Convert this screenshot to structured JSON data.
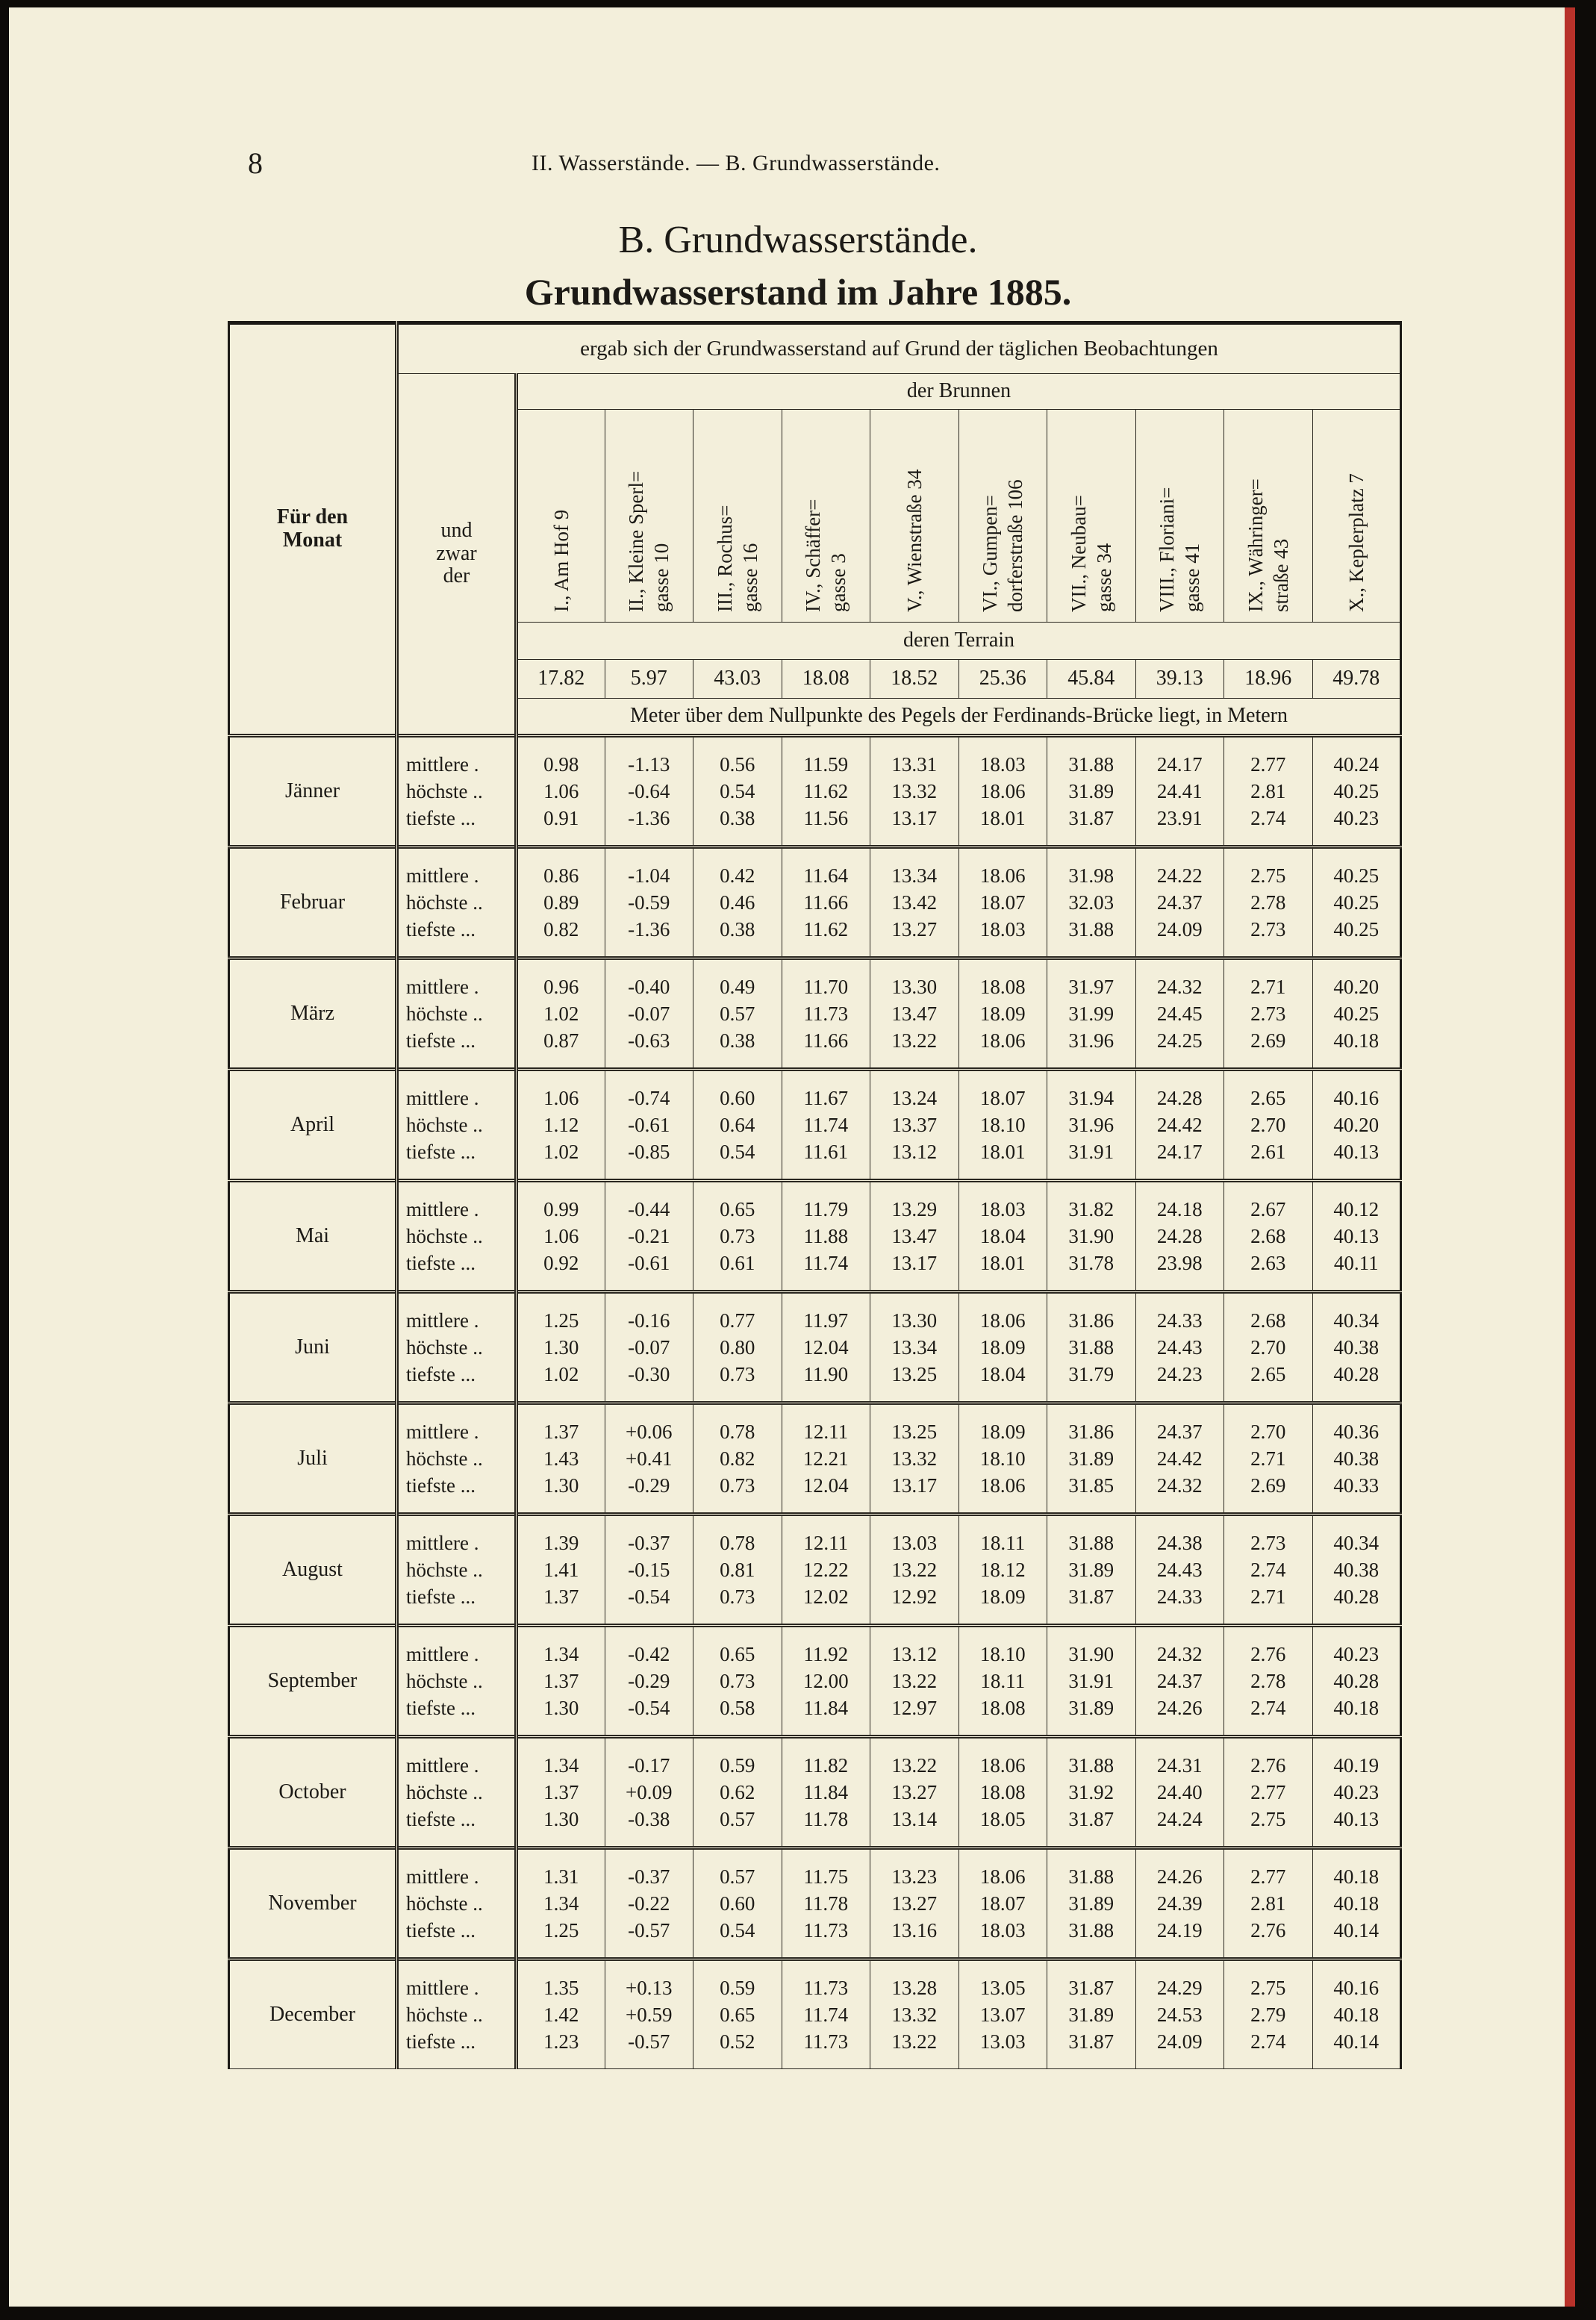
{
  "page_number": "8",
  "running_head": "II. Wasserstände. — B. Grundwasserstände.",
  "title": "B. Grundwasserstände.",
  "subtitle": "Grundwasserstand im Jahre 1885.",
  "table": {
    "col_month": "Für den Monat",
    "col_kind": "und zwar der",
    "header_top": "ergab sich der Grundwasserstand auf Grund der täglichen Beobachtungen",
    "header_wells": "der Brunnen",
    "wells": [
      {
        "line1": "I., Am Hof 9",
        "line2": ""
      },
      {
        "line1": "II., Kleine Sperl=",
        "line2": "gasse 10"
      },
      {
        "line1": "III., Rochus=",
        "line2": "gasse 16"
      },
      {
        "line1": "IV., Schäffer=",
        "line2": "gasse 3"
      },
      {
        "line1": "V., Wienstraße 34",
        "line2": ""
      },
      {
        "line1": "VI., Gumpen=",
        "line2": "dorferstraße 106"
      },
      {
        "line1": "VII., Neubau=",
        "line2": "gasse 34"
      },
      {
        "line1": "VIII., Floriani=",
        "line2": "gasse 41"
      },
      {
        "line1": "IX., Währinger=",
        "line2": "straße 43"
      },
      {
        "line1": "X., Keplerplatz 7",
        "line2": ""
      }
    ],
    "header_terrain": "deren Terrain",
    "terrain": [
      "17.82",
      "5.97",
      "43.03",
      "18.08",
      "18.52",
      "25.36",
      "45.84",
      "39.13",
      "18.96",
      "49.78"
    ],
    "header_meter": "Meter über dem Nullpunkte des Pegels der Ferdinands-Brücke liegt, in Metern",
    "row_labels": [
      "mittlere .",
      "höchste ..",
      "tiefste ..."
    ],
    "months": [
      {
        "name": "Jänner",
        "rows": [
          [
            "0.98",
            "-1.13",
            "0.56",
            "11.59",
            "13.31",
            "18.03",
            "31.88",
            "24.17",
            "2.77",
            "40.24"
          ],
          [
            "1.06",
            "-0.64",
            "0.54",
            "11.62",
            "13.32",
            "18.06",
            "31.89",
            "24.41",
            "2.81",
            "40.25"
          ],
          [
            "0.91",
            "-1.36",
            "0.38",
            "11.56",
            "13.17",
            "18.01",
            "31.87",
            "23.91",
            "2.74",
            "40.23"
          ]
        ]
      },
      {
        "name": "Februar",
        "rows": [
          [
            "0.86",
            "-1.04",
            "0.42",
            "11.64",
            "13.34",
            "18.06",
            "31.98",
            "24.22",
            "2.75",
            "40.25"
          ],
          [
            "0.89",
            "-0.59",
            "0.46",
            "11.66",
            "13.42",
            "18.07",
            "32.03",
            "24.37",
            "2.78",
            "40.25"
          ],
          [
            "0.82",
            "-1.36",
            "0.38",
            "11.62",
            "13.27",
            "18.03",
            "31.88",
            "24.09",
            "2.73",
            "40.25"
          ]
        ]
      },
      {
        "name": "März",
        "rows": [
          [
            "0.96",
            "-0.40",
            "0.49",
            "11.70",
            "13.30",
            "18.08",
            "31.97",
            "24.32",
            "2.71",
            "40.20"
          ],
          [
            "1.02",
            "-0.07",
            "0.57",
            "11.73",
            "13.47",
            "18.09",
            "31.99",
            "24.45",
            "2.73",
            "40.25"
          ],
          [
            "0.87",
            "-0.63",
            "0.38",
            "11.66",
            "13.22",
            "18.06",
            "31.96",
            "24.25",
            "2.69",
            "40.18"
          ]
        ]
      },
      {
        "name": "April",
        "rows": [
          [
            "1.06",
            "-0.74",
            "0.60",
            "11.67",
            "13.24",
            "18.07",
            "31.94",
            "24.28",
            "2.65",
            "40.16"
          ],
          [
            "1.12",
            "-0.61",
            "0.64",
            "11.74",
            "13.37",
            "18.10",
            "31.96",
            "24.42",
            "2.70",
            "40.20"
          ],
          [
            "1.02",
            "-0.85",
            "0.54",
            "11.61",
            "13.12",
            "18.01",
            "31.91",
            "24.17",
            "2.61",
            "40.13"
          ]
        ]
      },
      {
        "name": "Mai",
        "rows": [
          [
            "0.99",
            "-0.44",
            "0.65",
            "11.79",
            "13.29",
            "18.03",
            "31.82",
            "24.18",
            "2.67",
            "40.12"
          ],
          [
            "1.06",
            "-0.21",
            "0.73",
            "11.88",
            "13.47",
            "18.04",
            "31.90",
            "24.28",
            "2.68",
            "40.13"
          ],
          [
            "0.92",
            "-0.61",
            "0.61",
            "11.74",
            "13.17",
            "18.01",
            "31.78",
            "23.98",
            "2.63",
            "40.11"
          ]
        ]
      },
      {
        "name": "Juni",
        "rows": [
          [
            "1.25",
            "-0.16",
            "0.77",
            "11.97",
            "13.30",
            "18.06",
            "31.86",
            "24.33",
            "2.68",
            "40.34"
          ],
          [
            "1.30",
            "-0.07",
            "0.80",
            "12.04",
            "13.34",
            "18.09",
            "31.88",
            "24.43",
            "2.70",
            "40.38"
          ],
          [
            "1.02",
            "-0.30",
            "0.73",
            "11.90",
            "13.25",
            "18.04",
            "31.79",
            "24.23",
            "2.65",
            "40.28"
          ]
        ]
      },
      {
        "name": "Juli",
        "rows": [
          [
            "1.37",
            "+0.06",
            "0.78",
            "12.11",
            "13.25",
            "18.09",
            "31.86",
            "24.37",
            "2.70",
            "40.36"
          ],
          [
            "1.43",
            "+0.41",
            "0.82",
            "12.21",
            "13.32",
            "18.10",
            "31.89",
            "24.42",
            "2.71",
            "40.38"
          ],
          [
            "1.30",
            "-0.29",
            "0.73",
            "12.04",
            "13.17",
            "18.06",
            "31.85",
            "24.32",
            "2.69",
            "40.33"
          ]
        ]
      },
      {
        "name": "August",
        "rows": [
          [
            "1.39",
            "-0.37",
            "0.78",
            "12.11",
            "13.03",
            "18.11",
            "31.88",
            "24.38",
            "2.73",
            "40.34"
          ],
          [
            "1.41",
            "-0.15",
            "0.81",
            "12.22",
            "13.22",
            "18.12",
            "31.89",
            "24.43",
            "2.74",
            "40.38"
          ],
          [
            "1.37",
            "-0.54",
            "0.73",
            "12.02",
            "12.92",
            "18.09",
            "31.87",
            "24.33",
            "2.71",
            "40.28"
          ]
        ]
      },
      {
        "name": "September",
        "rows": [
          [
            "1.34",
            "-0.42",
            "0.65",
            "11.92",
            "13.12",
            "18.10",
            "31.90",
            "24.32",
            "2.76",
            "40.23"
          ],
          [
            "1.37",
            "-0.29",
            "0.73",
            "12.00",
            "13.22",
            "18.11",
            "31.91",
            "24.37",
            "2.78",
            "40.28"
          ],
          [
            "1.30",
            "-0.54",
            "0.58",
            "11.84",
            "12.97",
            "18.08",
            "31.89",
            "24.26",
            "2.74",
            "40.18"
          ]
        ]
      },
      {
        "name": "October",
        "rows": [
          [
            "1.34",
            "-0.17",
            "0.59",
            "11.82",
            "13.22",
            "18.06",
            "31.88",
            "24.31",
            "2.76",
            "40.19"
          ],
          [
            "1.37",
            "+0.09",
            "0.62",
            "11.84",
            "13.27",
            "18.08",
            "31.92",
            "24.40",
            "2.77",
            "40.23"
          ],
          [
            "1.30",
            "-0.38",
            "0.57",
            "11.78",
            "13.14",
            "18.05",
            "31.87",
            "24.24",
            "2.75",
            "40.13"
          ]
        ]
      },
      {
        "name": "November",
        "rows": [
          [
            "1.31",
            "-0.37",
            "0.57",
            "11.75",
            "13.23",
            "18.06",
            "31.88",
            "24.26",
            "2.77",
            "40.18"
          ],
          [
            "1.34",
            "-0.22",
            "0.60",
            "11.78",
            "13.27",
            "18.07",
            "31.89",
            "24.39",
            "2.81",
            "40.18"
          ],
          [
            "1.25",
            "-0.57",
            "0.54",
            "11.73",
            "13.16",
            "18.03",
            "31.88",
            "24.19",
            "2.76",
            "40.14"
          ]
        ]
      },
      {
        "name": "December",
        "rows": [
          [
            "1.35",
            "+0.13",
            "0.59",
            "11.73",
            "13.28",
            "13.05",
            "31.87",
            "24.29",
            "2.75",
            "40.16"
          ],
          [
            "1.42",
            "+0.59",
            "0.65",
            "11.74",
            "13.32",
            "13.07",
            "31.89",
            "24.53",
            "2.79",
            "40.18"
          ],
          [
            "1.23",
            "-0.57",
            "0.52",
            "11.73",
            "13.22",
            "13.03",
            "31.87",
            "24.09",
            "2.74",
            "40.14"
          ]
        ]
      }
    ]
  }
}
